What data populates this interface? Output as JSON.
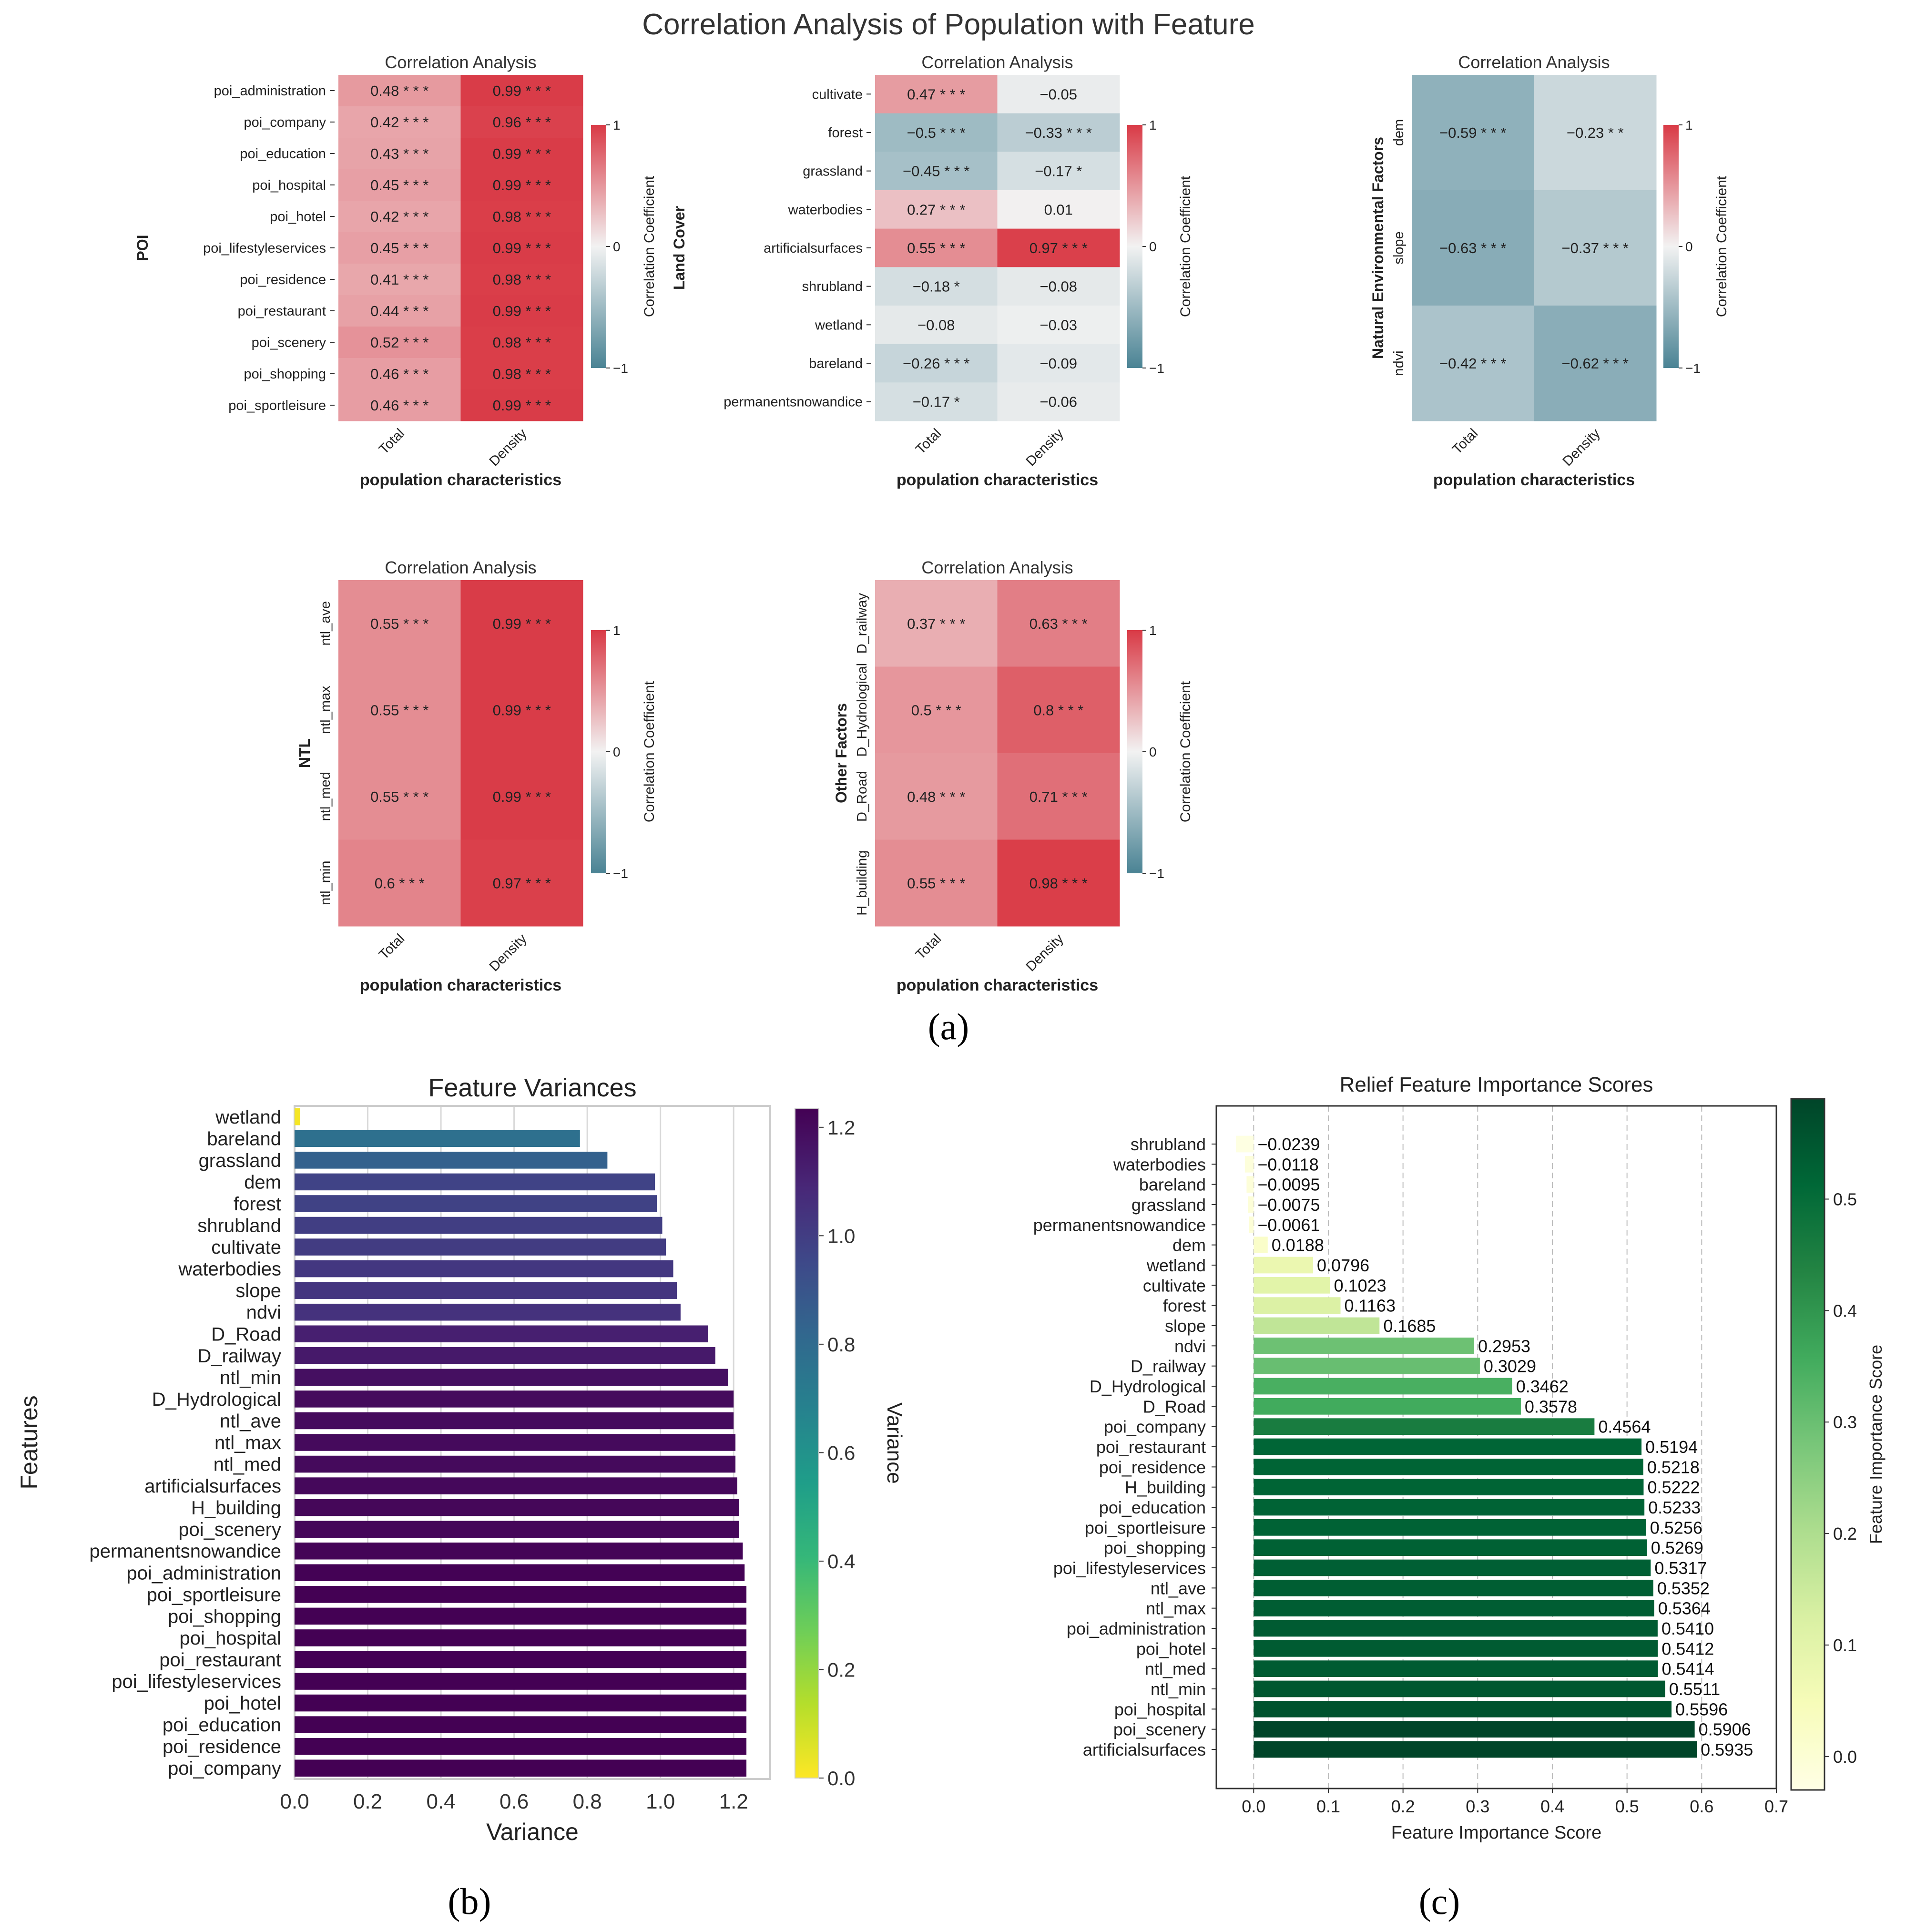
{
  "figure": {
    "suptitle": "Correlation Analysis of Population with Feature",
    "label_a": "(a)",
    "label_b": "(b)",
    "label_c": "(c)"
  },
  "colors": {
    "pos": "#d93a46",
    "neg": "#4a8394",
    "mid": "#f2f2f2",
    "viridis": [
      "#440154",
      "#482878",
      "#3e4989",
      "#31688e",
      "#26828e",
      "#1f9e89",
      "#35b779",
      "#6ece58",
      "#b5de2b",
      "#fde725"
    ],
    "greens": [
      "#ffffe5",
      "#f7fcb9",
      "#d9f0a3",
      "#addd8e",
      "#78c679",
      "#41ab5d",
      "#238443",
      "#006837",
      "#004529"
    ]
  },
  "chart_data": [
    {
      "id": "heat_poi",
      "type": "heatmap",
      "title": "Correlation Analysis",
      "ylabel": "POI",
      "xlabel": "population characteristics",
      "columns": [
        "Total",
        "Density"
      ],
      "rows": [
        "poi_administration",
        "poi_company",
        "poi_education",
        "poi_hospital",
        "poi_hotel",
        "poi_lifestyleservices",
        "poi_residence",
        "poi_restaurant",
        "poi_scenery",
        "poi_shopping",
        "poi_sportleisure"
      ],
      "values": [
        [
          0.48,
          0.99
        ],
        [
          0.42,
          0.96
        ],
        [
          0.43,
          0.99
        ],
        [
          0.45,
          0.99
        ],
        [
          0.42,
          0.98
        ],
        [
          0.45,
          0.99
        ],
        [
          0.41,
          0.98
        ],
        [
          0.44,
          0.99
        ],
        [
          0.52,
          0.98
        ],
        [
          0.46,
          0.98
        ],
        [
          0.46,
          0.99
        ]
      ],
      "labels": [
        [
          "0.48 * * *",
          "0.99 * * *"
        ],
        [
          "0.42 * * *",
          "0.96 * * *"
        ],
        [
          "0.43 * * *",
          "0.99 * * *"
        ],
        [
          "0.45 * * *",
          "0.99 * * *"
        ],
        [
          "0.42 * * *",
          "0.98 * * *"
        ],
        [
          "0.45 * * *",
          "0.99 * * *"
        ],
        [
          "0.41 * * *",
          "0.98 * * *"
        ],
        [
          "0.44 * * *",
          "0.99 * * *"
        ],
        [
          "0.52 * * *",
          "0.98 * * *"
        ],
        [
          "0.46 * * *",
          "0.98 * * *"
        ],
        [
          "0.46 * * *",
          "0.99 * * *"
        ]
      ],
      "colorbar": {
        "label": "Correlation Coefficient",
        "ticks": [
          "1",
          "0",
          "−1"
        ],
        "range": [
          -1,
          1
        ]
      }
    },
    {
      "id": "heat_land",
      "type": "heatmap",
      "title": "Correlation Analysis",
      "ylabel": "Land Cover",
      "xlabel": "population characteristics",
      "columns": [
        "Total",
        "Density"
      ],
      "rows": [
        "cultivate",
        "forest",
        "grassland",
        "waterbodies",
        "artificialsurfaces",
        "shrubland",
        "wetland",
        "bareland",
        "permanentsnowandice"
      ],
      "values": [
        [
          0.47,
          -0.05
        ],
        [
          -0.5,
          -0.33
        ],
        [
          -0.45,
          -0.17
        ],
        [
          0.27,
          0.01
        ],
        [
          0.55,
          0.97
        ],
        [
          -0.18,
          -0.08
        ],
        [
          -0.08,
          -0.03
        ],
        [
          -0.26,
          -0.09
        ],
        [
          -0.17,
          -0.06
        ]
      ],
      "labels": [
        [
          "0.47 * * *",
          "−0.05"
        ],
        [
          "−0.5 * * *",
          "−0.33 * * *"
        ],
        [
          "−0.45 * * *",
          "−0.17 *"
        ],
        [
          "0.27 * * *",
          "0.01"
        ],
        [
          "0.55 * * *",
          "0.97 * * *"
        ],
        [
          "−0.18 *",
          "−0.08"
        ],
        [
          "−0.08",
          "−0.03"
        ],
        [
          "−0.26 * * *",
          "−0.09"
        ],
        [
          "−0.17 *",
          "−0.06"
        ]
      ],
      "colorbar": {
        "label": "Correlation Coefficient",
        "ticks": [
          "1",
          "0",
          "−1"
        ],
        "range": [
          -1,
          1
        ]
      }
    },
    {
      "id": "heat_natural",
      "type": "heatmap",
      "title": "Correlation Analysis",
      "ylabel": "Natural Environmental Factors",
      "xlabel": "population characteristics",
      "columns": [
        "Total",
        "Density"
      ],
      "rows": [
        "dem",
        "slope",
        "ndvi"
      ],
      "values": [
        [
          -0.59,
          -0.23
        ],
        [
          -0.63,
          -0.37
        ],
        [
          -0.42,
          -0.62
        ]
      ],
      "labels": [
        [
          "−0.59 * * *",
          "−0.23 * *"
        ],
        [
          "−0.63 * * *",
          "−0.37 * * *"
        ],
        [
          "−0.42 * * *",
          "−0.62 * * *"
        ]
      ],
      "colorbar": {
        "label": "Correlation Coefficient",
        "ticks": [
          "1",
          "0",
          "−1"
        ],
        "range": [
          -1,
          1
        ]
      }
    },
    {
      "id": "heat_ntl",
      "type": "heatmap",
      "title": "Correlation Analysis",
      "ylabel": "NTL",
      "xlabel": "population characteristics",
      "columns": [
        "Total",
        "Density"
      ],
      "rows": [
        "ntl_ave",
        "ntl_max",
        "ntl_med",
        "ntl_min"
      ],
      "values": [
        [
          0.55,
          0.99
        ],
        [
          0.55,
          0.99
        ],
        [
          0.55,
          0.99
        ],
        [
          0.6,
          0.97
        ]
      ],
      "labels": [
        [
          "0.55 * * *",
          "0.99 * * *"
        ],
        [
          "0.55 * * *",
          "0.99 * * *"
        ],
        [
          "0.55 * * *",
          "0.99 * * *"
        ],
        [
          "0.6 * * *",
          "0.97 * * *"
        ]
      ],
      "colorbar": {
        "label": "Correlation Coefficient",
        "ticks": [
          "1",
          "0",
          "−1"
        ],
        "range": [
          -1,
          1
        ]
      }
    },
    {
      "id": "heat_other",
      "type": "heatmap",
      "title": "Correlation Analysis",
      "ylabel": "Other Factors",
      "xlabel": "population characteristics",
      "columns": [
        "Total",
        "Density"
      ],
      "rows": [
        "D_railway",
        "D_Hydrological",
        "D_Road",
        "H_building"
      ],
      "values": [
        [
          0.37,
          0.63
        ],
        [
          0.5,
          0.8
        ],
        [
          0.48,
          0.71
        ],
        [
          0.55,
          0.98
        ]
      ],
      "labels": [
        [
          "0.37 * * *",
          "0.63 * * *"
        ],
        [
          "0.5 * * *",
          "0.8 * * *"
        ],
        [
          "0.48 * * *",
          "0.71 * * *"
        ],
        [
          "0.55 * * *",
          "0.98 * * *"
        ]
      ],
      "colorbar": {
        "label": "Correlation Coefficient",
        "ticks": [
          "1",
          "0",
          "−1"
        ],
        "range": [
          -1,
          1
        ]
      }
    },
    {
      "id": "variances",
      "type": "bar",
      "orientation": "horizontal",
      "title": "Feature Variances",
      "xlabel": "Variance",
      "ylabel": "Features",
      "xlim": [
        0,
        1.3
      ],
      "xticks": [
        "0.0",
        "0.2",
        "0.4",
        "0.6",
        "0.8",
        "1.0",
        "1.2"
      ],
      "categories": [
        "wetland",
        "bareland",
        "grassland",
        "dem",
        "forest",
        "shrubland",
        "cultivate",
        "waterbodies",
        "slope",
        "ndvi",
        "D_Road",
        "D_railway",
        "ntl_min",
        "D_Hydrological",
        "ntl_ave",
        "ntl_max",
        "ntl_med",
        "artificialsurfaces",
        "H_building",
        "poi_scenery",
        "permanentsnowandice",
        "poi_administration",
        "poi_sportleisure",
        "poi_shopping",
        "poi_hospital",
        "poi_restaurant",
        "poi_lifestyleservices",
        "poi_hotel",
        "poi_education",
        "poi_residence",
        "poi_company"
      ],
      "values": [
        0.015,
        0.78,
        0.855,
        0.985,
        0.99,
        1.005,
        1.015,
        1.035,
        1.045,
        1.055,
        1.13,
        1.15,
        1.185,
        1.2,
        1.2,
        1.205,
        1.205,
        1.21,
        1.215,
        1.215,
        1.225,
        1.23,
        1.235,
        1.235,
        1.235,
        1.235,
        1.235,
        1.235,
        1.235,
        1.235,
        1.235
      ],
      "colorbar": {
        "label": "Variance",
        "ticks": [
          "1.2",
          "1.0",
          "0.8",
          "0.6",
          "0.4",
          "0.2",
          "0.0"
        ],
        "range": [
          0,
          1.235
        ]
      }
    },
    {
      "id": "relief",
      "type": "bar",
      "orientation": "horizontal",
      "title": "Relief Feature Importance Scores",
      "xlabel": "Feature Importance Score",
      "xlim": [
        -0.05,
        0.7
      ],
      "xticks": [
        "0.0",
        "0.1",
        "0.2",
        "0.3",
        "0.4",
        "0.5",
        "0.6",
        "0.7"
      ],
      "categories": [
        "shrubland",
        "waterbodies",
        "bareland",
        "grassland",
        "permanentsnowandice",
        "dem",
        "wetland",
        "cultivate",
        "forest",
        "slope",
        "ndvi",
        "D_railway",
        "D_Hydrological",
        "D_Road",
        "poi_company",
        "poi_restaurant",
        "poi_residence",
        "H_building",
        "poi_education",
        "poi_sportleisure",
        "poi_shopping",
        "poi_lifestyleservices",
        "ntl_ave",
        "ntl_max",
        "poi_administration",
        "poi_hotel",
        "ntl_med",
        "ntl_min",
        "poi_hospital",
        "poi_scenery",
        "artificialsurfaces"
      ],
      "values": [
        -0.0239,
        -0.0118,
        -0.0095,
        -0.0075,
        -0.0061,
        0.0188,
        0.0796,
        0.1023,
        0.1163,
        0.1685,
        0.2953,
        0.3029,
        0.3462,
        0.3578,
        0.4564,
        0.5194,
        0.5218,
        0.5222,
        0.5233,
        0.5256,
        0.5269,
        0.5317,
        0.5352,
        0.5364,
        0.541,
        0.5412,
        0.5414,
        0.5511,
        0.5596,
        0.5906,
        0.5935
      ],
      "labels": [
        "−0.0239",
        "−0.0118",
        "−0.0095",
        "−0.0075",
        "−0.0061",
        "0.0188",
        "0.0796",
        "0.1023",
        "0.1163",
        "0.1685",
        "0.2953",
        "0.3029",
        "0.3462",
        "0.3578",
        "0.4564",
        "0.5194",
        "0.5218",
        "0.5222",
        "0.5233",
        "0.5256",
        "0.5269",
        "0.5317",
        "0.5352",
        "0.5364",
        "0.5410",
        "0.5412",
        "0.5414",
        "0.5511",
        "0.5596",
        "0.5906",
        "0.5935"
      ],
      "colorbar": {
        "label": "Feature Importance Score",
        "ticks": [
          "0.5",
          "0.4",
          "0.3",
          "0.2",
          "0.1",
          "0.0"
        ],
        "range": [
          -0.03,
          0.59
        ]
      }
    }
  ]
}
